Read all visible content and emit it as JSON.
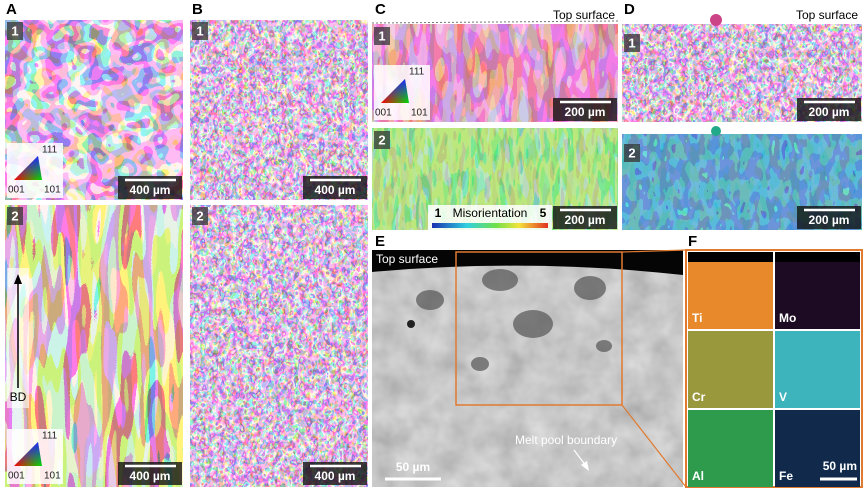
{
  "panel_a": {
    "letter": "A",
    "images": [
      {
        "label": "1",
        "scale_bar": "400 µm",
        "ipf_legend": {
          "top": "111",
          "left": "001",
          "right": "101"
        }
      },
      {
        "label": "2",
        "scale_bar": "400 µm",
        "direction": "BD",
        "ipf_legend": {
          "top": "111",
          "left": "001",
          "right": "101"
        }
      }
    ]
  },
  "panel_b": {
    "letter": "B",
    "images": [
      {
        "label": "1",
        "scale_bar": "400 µm"
      },
      {
        "label": "2",
        "scale_bar": "400 µm"
      }
    ]
  },
  "panel_c": {
    "letter": "C",
    "images": [
      {
        "label": "1",
        "scale_bar": "200 µm",
        "annotation": "Top surface",
        "ipf_legend": {
          "top": "111",
          "left": "001",
          "right": "101"
        }
      },
      {
        "label": "2",
        "scale_bar": "200 µm",
        "colorbar": {
          "title": "Misorientation",
          "min": 1,
          "max": 5
        }
      }
    ]
  },
  "panel_d": {
    "letter": "D",
    "images": [
      {
        "label": "1",
        "scale_bar": "200 µm",
        "annotation": "Top surface"
      },
      {
        "label": "2",
        "scale_bar": "200 µm"
      }
    ]
  },
  "panel_e": {
    "letter": "E",
    "annotations": [
      "Top surface",
      "Melt pool boundary"
    ],
    "scale_bar": "50 µm"
  },
  "panel_f": {
    "letter": "F",
    "scale_bar": "50 µm",
    "maps": [
      {
        "element": "Ti",
        "color": "#e8892c"
      },
      {
        "element": "Mo",
        "color": "#1d0b24"
      },
      {
        "element": "Cr",
        "color": "#9a983c"
      },
      {
        "element": "V",
        "color": "#3db4bc"
      },
      {
        "element": "Al",
        "color": "#2e9a4c"
      },
      {
        "element": "Fe",
        "color": "#112a4c"
      }
    ]
  }
}
